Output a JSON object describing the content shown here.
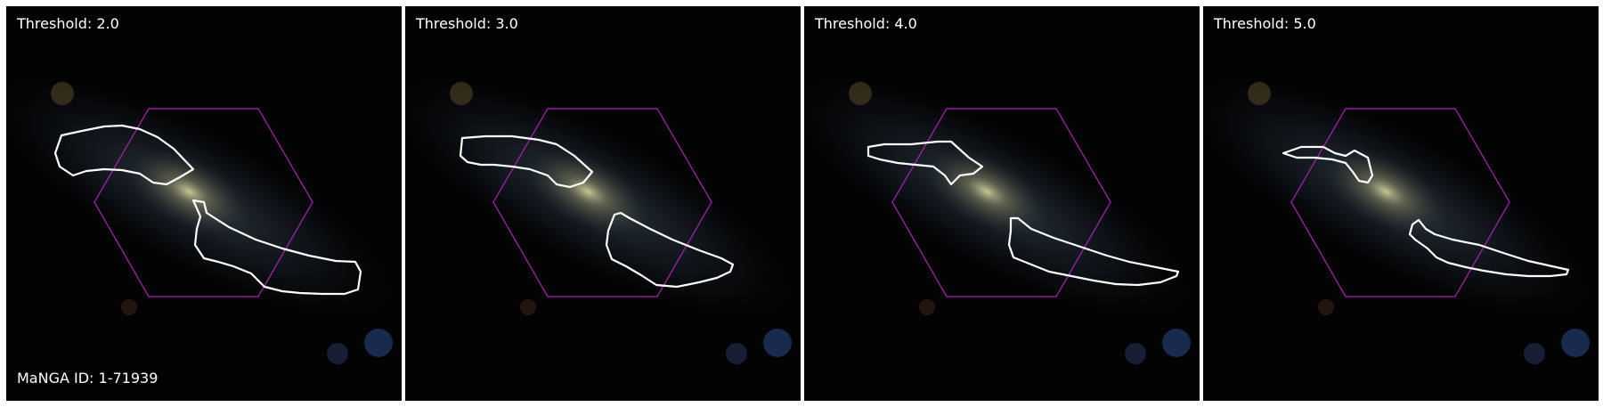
{
  "panels": [
    {
      "label": "Threshold: 2.0"
    },
    {
      "label": "Threshold: 3.0"
    },
    {
      "label": "Threshold: 4.0"
    },
    {
      "label": "Threshold: 5.0"
    }
  ],
  "manga_id_label": "MaNGA ID: 1-71939",
  "colors": {
    "background": "#030304",
    "contour": "#ffffff",
    "ifu_hexagon": "#b020b8",
    "galaxy_core": "#c8c89a"
  }
}
